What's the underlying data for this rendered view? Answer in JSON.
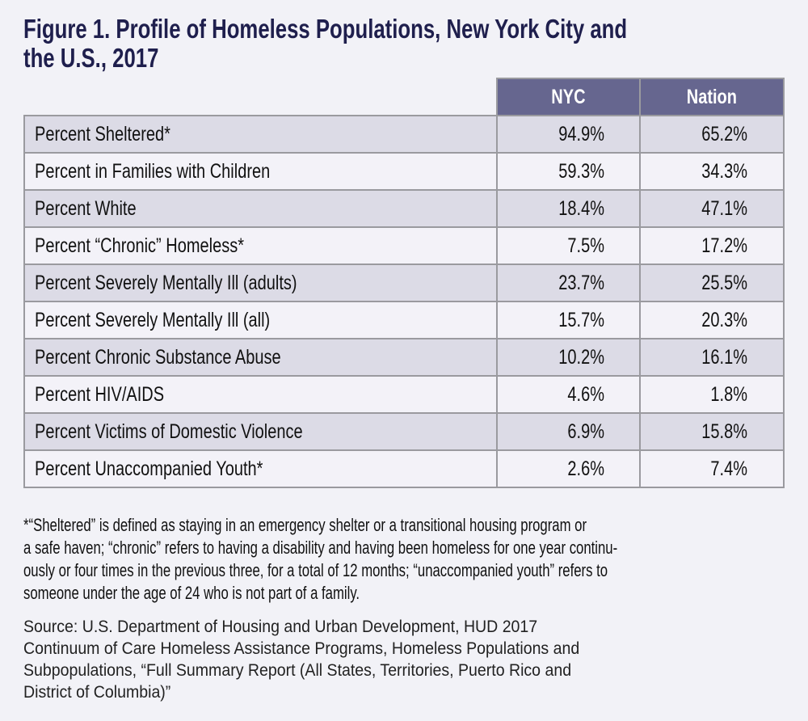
{
  "title_lines": [
    "Figure 1. Profile of Homeless Populations, New York City and",
    "the U.S., 2017"
  ],
  "colors": {
    "header_bg": "#66668f",
    "title": "#1f1f4d",
    "row_shade": "#dcdbe6"
  },
  "chart_data": {
    "type": "table",
    "title": "Figure 1. Profile of Homeless Populations, New York City and the U.S., 2017",
    "columns": [
      "NYC",
      "Nation"
    ],
    "rows": [
      {
        "label": "Percent Sheltered*",
        "values": [
          "94.9%",
          "65.2%"
        ]
      },
      {
        "label": "Percent in Families with Children",
        "values": [
          "59.3%",
          "34.3%"
        ]
      },
      {
        "label": "Percent White",
        "values": [
          "18.4%",
          "47.1%"
        ]
      },
      {
        "label": "Percent “Chronic” Homeless*",
        "values": [
          "7.5%",
          "17.2%"
        ]
      },
      {
        "label": "Percent Severely Mentally Ill (adults)",
        "values": [
          "23.7%",
          "25.5%"
        ]
      },
      {
        "label": "Percent Severely Mentally Ill (all)",
        "values": [
          "15.7%",
          "20.3%"
        ]
      },
      {
        "label": "Percent Chronic Substance Abuse",
        "values": [
          "10.2%",
          "16.1%"
        ]
      },
      {
        "label": "Percent HIV/AIDS",
        "values": [
          "4.6%",
          "1.8%"
        ]
      },
      {
        "label": "Percent Victims of Domestic Violence",
        "values": [
          "6.9%",
          "15.8%"
        ]
      },
      {
        "label": "Percent Unaccompanied Youth*",
        "values": [
          "2.6%",
          "7.4%"
        ]
      }
    ]
  },
  "footnote_lines": [
    "*“Sheltered” is defined as staying in an emergency shelter or a transitional housing program or",
    "a safe haven; “chronic” refers to having a disability and having been homeless for one year continu-",
    "ously or four times in the previous three, for a total of 12 months; “unaccompanied youth” refers to",
    "someone under the age of 24 who is not part of a family."
  ],
  "source_lines": [
    "Source: U.S. Department of Housing and Urban Development, HUD 2017",
    "Continuum of Care Homeless Assistance Programs, Homeless Populations and",
    "Subpopulations, “Full Summary Report (All States, Territories, Puerto Rico and",
    "District of Columbia)”"
  ]
}
